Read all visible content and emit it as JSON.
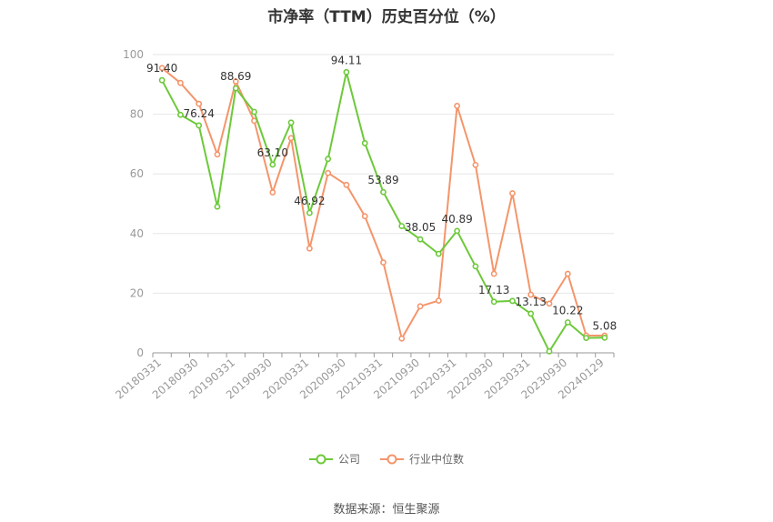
{
  "title": "市净率（TTM）历史百分位（%）",
  "source": "数据来源：恒生聚源",
  "colors": {
    "company": "#6dc93a",
    "industry": "#f4956b",
    "grid": "#e6e6e6",
    "axis": "#999999"
  },
  "chart_data": {
    "type": "line",
    "ylim": [
      0,
      100
    ],
    "yticks": [
      0,
      20,
      40,
      60,
      80,
      100
    ],
    "grid": true,
    "legend_position": "bottom-center",
    "x": [
      "20180331",
      "20180630",
      "20180930",
      "20181231",
      "20190331",
      "20190630",
      "20190930",
      "20191231",
      "20200331",
      "20200630",
      "20200930",
      "20201231",
      "20210331",
      "20210630",
      "20210930",
      "20211231",
      "20220331",
      "20220630",
      "20220930",
      "20221231",
      "20230331",
      "20230630",
      "20230930",
      "20231231",
      "20240129"
    ],
    "xtick_labels": [
      "20180331",
      "20180930",
      "20190331",
      "20190930",
      "20200331",
      "20200930",
      "20210331",
      "20210930",
      "20220331",
      "20220930",
      "20230331",
      "20230930",
      "20240129"
    ],
    "series": [
      {
        "name": "公司",
        "color": "#6dc93a",
        "values": [
          91.4,
          79.8,
          76.24,
          49.0,
          88.69,
          80.8,
          63.1,
          77.2,
          46.92,
          65.0,
          94.11,
          70.3,
          53.89,
          42.5,
          38.05,
          33.2,
          40.89,
          29.0,
          17.13,
          17.4,
          13.13,
          0.5,
          10.22,
          5.0,
          5.08
        ]
      },
      {
        "name": "行业中位数",
        "color": "#f4956b",
        "values": [
          95.5,
          90.5,
          83.5,
          66.5,
          91.0,
          77.8,
          53.8,
          72.0,
          35.0,
          60.3,
          56.3,
          45.8,
          30.3,
          4.8,
          15.6,
          17.5,
          82.8,
          63.0,
          26.5,
          53.5,
          19.5,
          16.5,
          26.5,
          5.8,
          5.8
        ]
      }
    ],
    "data_labels": [
      {
        "index": 0,
        "text": "91.40"
      },
      {
        "index": 2,
        "text": "76.24"
      },
      {
        "index": 4,
        "text": "88.69"
      },
      {
        "index": 6,
        "text": "63.10"
      },
      {
        "index": 8,
        "text": "46.92"
      },
      {
        "index": 10,
        "text": "94.11"
      },
      {
        "index": 12,
        "text": "53.89"
      },
      {
        "index": 14,
        "text": "38.05"
      },
      {
        "index": 16,
        "text": "40.89"
      },
      {
        "index": 18,
        "text": "17.13"
      },
      {
        "index": 20,
        "text": "13.13"
      },
      {
        "index": 22,
        "text": "10.22"
      },
      {
        "index": 24,
        "text": "5.08"
      }
    ]
  }
}
